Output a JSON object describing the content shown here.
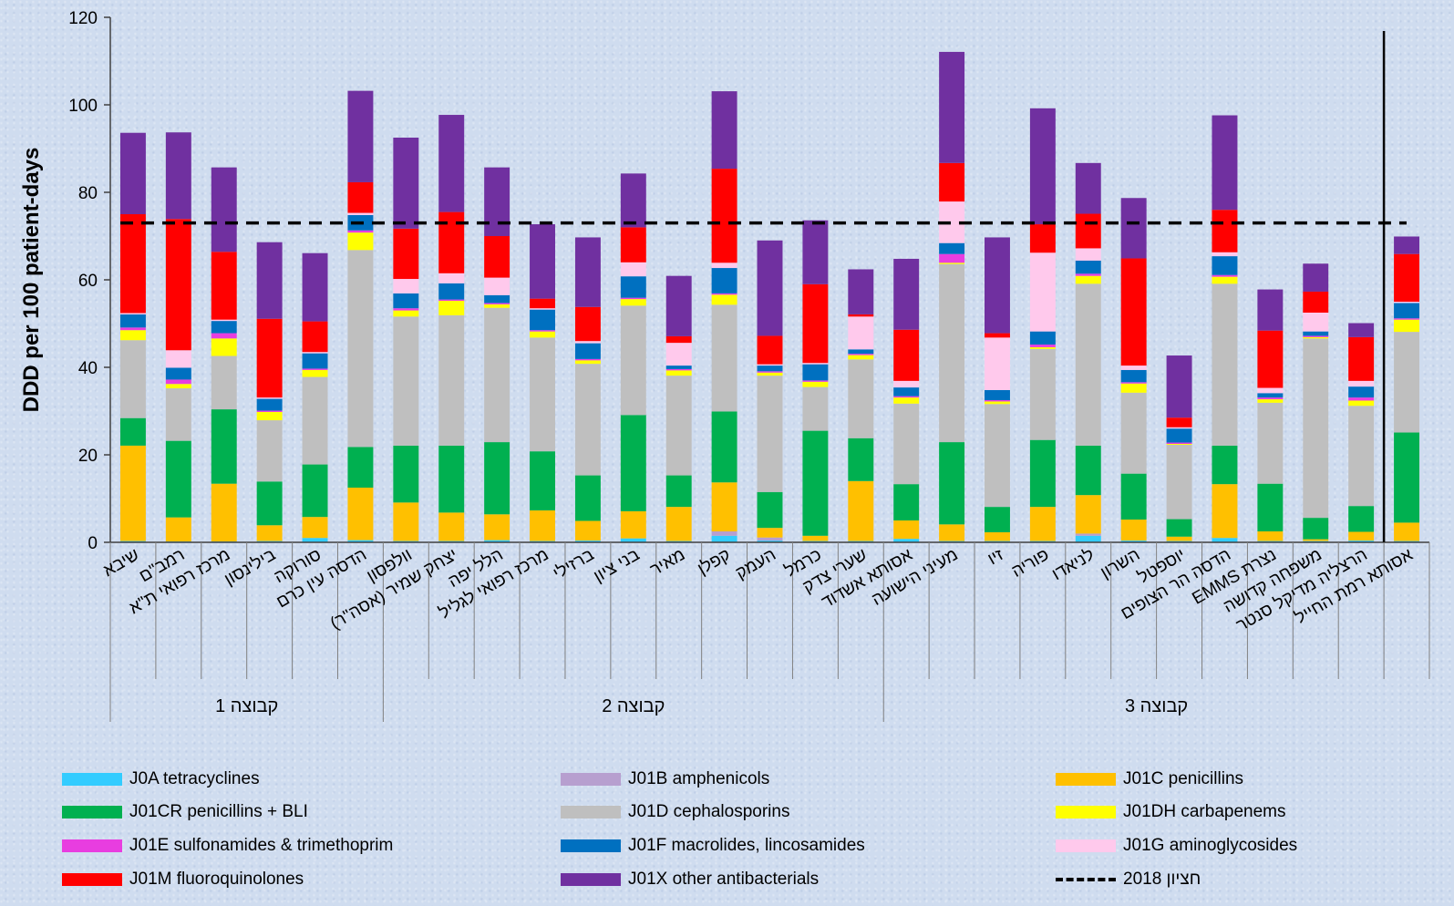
{
  "chart_data": {
    "type": "bar",
    "stacked": true,
    "ylabel": "DDD per 100 patient-days",
    "ylim": [
      0,
      120
    ],
    "yticks": [
      0,
      20,
      40,
      60,
      80,
      100,
      120
    ],
    "grid": false,
    "legend_position": "bottom",
    "target_line": {
      "label": "חציון 2018",
      "value": 73,
      "style": "dashed",
      "color": "#000000"
    },
    "separator_after_index": 27,
    "categories": [
      "שיבא",
      "רמב\"ם",
      "מרכז רפואי ת\"א",
      "בילינסון",
      "סורוקה",
      "הדסה עין כרם",
      "וולפסון",
      "יצחק שמיר (אסה\"ר)",
      "הלל יפה",
      "מרכז רפואי לגליל",
      "ברזילי",
      "בני ציון",
      "מאיר",
      "קפלן",
      "העמק",
      "כרמל",
      "שערי צדק",
      "אסותא אשדוד",
      "מעיני הישועה",
      "זיו",
      "פוריה",
      "לניאדו",
      "השרון",
      "יוספטל",
      "הדסה הר הצופים",
      "EMMS נצרת",
      "משפחה קדושה",
      "הרצליה מדיקל סנטר",
      "אסותא רמת החייל"
    ],
    "groups": [
      {
        "label": "קבוצה 1",
        "start": 0,
        "end": 5
      },
      {
        "label": "קבוצה 2",
        "start": 6,
        "end": 16
      },
      {
        "label": "קבוצה 3",
        "start": 17,
        "end": 28
      }
    ],
    "series": [
      {
        "name": "J0A tetracyclines",
        "color": "#33ccff",
        "values": [
          0.3,
          0.2,
          0.2,
          0.3,
          1.0,
          0.5,
          0.3,
          0.3,
          0.5,
          0.3,
          0.4,
          0.9,
          0.3,
          1.5,
          0.4,
          0.3,
          0.3,
          0.8,
          0.3,
          0.3,
          0.3,
          1.5,
          0.4,
          0.3,
          1.0,
          0.3,
          0.3,
          0.4,
          0.3
        ]
      },
      {
        "name": "J01B amphenicols",
        "color": "#b79fcf",
        "values": [
          0,
          0,
          0,
          0,
          0,
          0,
          0,
          0,
          0,
          0,
          0,
          0,
          0,
          1.0,
          0.7,
          0,
          0,
          0,
          0,
          0,
          0,
          0.5,
          0,
          0,
          0,
          0,
          0,
          0,
          0
        ]
      },
      {
        "name": "J01C penicillins",
        "color": "#ffc000",
        "values": [
          21.8,
          5.5,
          13.2,
          3.6,
          4.8,
          12.0,
          8.8,
          6.5,
          5.9,
          7.0,
          4.5,
          6.2,
          7.8,
          11.2,
          2.2,
          1.2,
          13.7,
          4.2,
          3.8,
          2.0,
          7.8,
          8.8,
          4.8,
          1.0,
          12.3,
          2.2,
          0.4,
          2.0,
          4.2
        ]
      },
      {
        "name": "J01CR penicillins + BLI",
        "color": "#00b050",
        "values": [
          6.3,
          17.5,
          17.0,
          10.0,
          12.0,
          9.3,
          13.0,
          15.3,
          16.5,
          13.5,
          10.4,
          22.0,
          7.2,
          16.2,
          8.2,
          24.0,
          9.8,
          8.3,
          18.8,
          5.8,
          15.3,
          11.3,
          10.5,
          4.0,
          8.8,
          10.9,
          4.9,
          5.9,
          20.6
        ]
      },
      {
        "name": "J01D cephalosporins",
        "color": "#bfbfbf",
        "values": [
          17.8,
          12.0,
          12.2,
          14.0,
          20.0,
          45.0,
          29.5,
          29.8,
          30.7,
          26.0,
          25.5,
          25.0,
          22.8,
          24.4,
          26.6,
          10.0,
          18.0,
          18.4,
          40.7,
          23.5,
          20.8,
          37.0,
          18.5,
          17.0,
          37.0,
          18.5,
          41.0,
          22.9,
          23.0
        ]
      },
      {
        "name": "J01DH carbapenems",
        "color": "#ffff00",
        "values": [
          2.3,
          1.0,
          4.0,
          1.9,
          1.6,
          4.0,
          1.4,
          3.3,
          0.8,
          1.4,
          0.8,
          1.5,
          1.2,
          2.3,
          0.7,
          1.2,
          1.0,
          1.4,
          0.3,
          0.6,
          0.4,
          1.8,
          2.1,
          0.2,
          1.6,
          0.8,
          0.3,
          1.2,
          2.8
        ]
      },
      {
        "name": "J01E sulfonamides & trimethoprim",
        "color": "#e83de0",
        "values": [
          0.6,
          1.0,
          1.2,
          0.3,
          0.3,
          0.5,
          0.5,
          0.3,
          0.3,
          0.3,
          0.3,
          0.3,
          0.3,
          0.3,
          0.3,
          0.3,
          0.3,
          0.3,
          2.0,
          0.3,
          0.6,
          0.5,
          0.3,
          0.3,
          0.4,
          0.4,
          0.3,
          0.7,
          0.3
        ]
      },
      {
        "name": "J01F macrolides, lincosamides",
        "color": "#0070c0",
        "values": [
          3.0,
          2.7,
          2.8,
          2.7,
          3.5,
          3.5,
          3.4,
          3.7,
          1.8,
          4.7,
          3.6,
          4.9,
          0.8,
          5.8,
          1.3,
          3.7,
          1.0,
          2.0,
          2.5,
          2.3,
          3.0,
          3.0,
          2.8,
          3.2,
          4.3,
          1.0,
          1.0,
          2.5,
          3.5
        ]
      },
      {
        "name": "J01G aminoglycosides",
        "color": "#ffc9ec",
        "values": [
          0.3,
          4.0,
          0.3,
          0.3,
          0.3,
          0.5,
          3.3,
          2.3,
          4.0,
          0.3,
          0.5,
          3.2,
          5.2,
          1.2,
          0.3,
          0.3,
          7.5,
          1.5,
          9.5,
          12.0,
          18.0,
          2.8,
          1.0,
          0.3,
          0.9,
          1.2,
          4.3,
          1.3,
          0.3
        ]
      },
      {
        "name": "J01M fluoroquinolones",
        "color": "#ff0000",
        "values": [
          22.6,
          30.0,
          15.5,
          18.0,
          7.0,
          7.0,
          11.5,
          14.0,
          9.5,
          2.2,
          7.8,
          8.0,
          1.5,
          21.5,
          6.5,
          18.0,
          0.5,
          11.7,
          8.8,
          1.0,
          6.5,
          7.9,
          24.5,
          2.2,
          9.7,
          13.1,
          4.8,
          10.0,
          10.9
        ]
      },
      {
        "name": "J01X other antibacterials",
        "color": "#7030a0",
        "values": [
          18.6,
          19.8,
          19.3,
          17.5,
          15.6,
          20.9,
          20.8,
          22.2,
          15.7,
          17.0,
          15.9,
          12.3,
          13.8,
          17.7,
          21.8,
          14.6,
          10.3,
          16.2,
          25.4,
          21.9,
          26.5,
          11.6,
          13.8,
          14.2,
          21.6,
          9.4,
          6.4,
          3.2,
          4.0
        ]
      }
    ]
  }
}
